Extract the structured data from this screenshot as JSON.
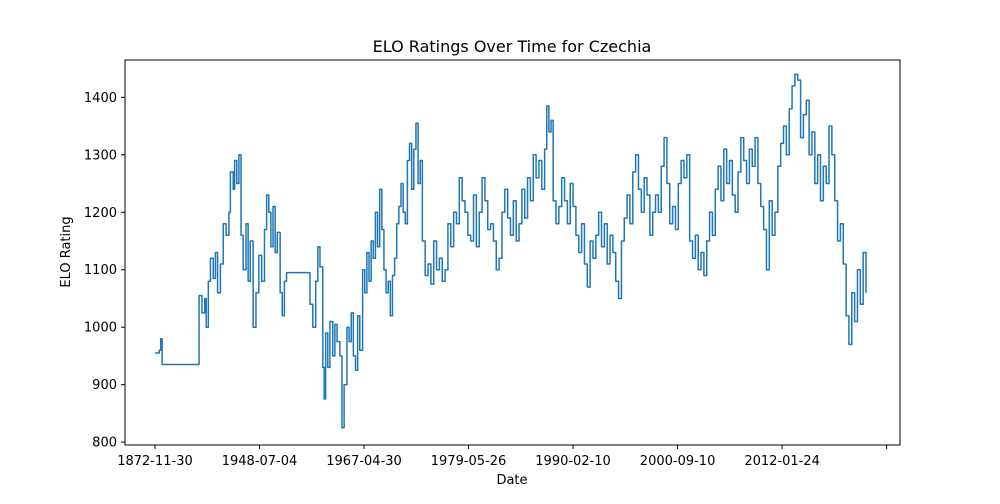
{
  "chart_data": {
    "type": "line",
    "title": "ELO Ratings Over Time for Czechia",
    "xlabel": "Date",
    "ylabel": "ELO Rating",
    "x_tick_labels": [
      "1872-11-30",
      "1948-07-04",
      "1967-04-30",
      "1979-05-26",
      "1990-02-10",
      "2000-09-10",
      "2012-01-24",
      ""
    ],
    "y_ticks": [
      800,
      900,
      1000,
      1100,
      1200,
      1300,
      1400
    ],
    "y_tick_labels": [
      "800",
      "900",
      "1000",
      "1100",
      "1200",
      "1300",
      "1400"
    ],
    "ylim": [
      795,
      1465
    ],
    "index_range": [
      0,
      1000
    ],
    "x_tick_positions": [
      0,
      147,
      294,
      441,
      588,
      735,
      882,
      1029
    ],
    "grid": false,
    "series": [
      {
        "name": "",
        "color": "#1f77b4",
        "points": [
          [
            0,
            955
          ],
          [
            6,
            960
          ],
          [
            8,
            980
          ],
          [
            10,
            935
          ],
          [
            16,
            935
          ],
          [
            60,
            935
          ],
          [
            62,
            1055
          ],
          [
            66,
            1025
          ],
          [
            70,
            1050
          ],
          [
            72,
            1000
          ],
          [
            75,
            1080
          ],
          [
            78,
            1120
          ],
          [
            82,
            1085
          ],
          [
            85,
            1130
          ],
          [
            88,
            1060
          ],
          [
            92,
            1110
          ],
          [
            96,
            1180
          ],
          [
            100,
            1160
          ],
          [
            104,
            1200
          ],
          [
            106,
            1270
          ],
          [
            110,
            1240
          ],
          [
            112,
            1290
          ],
          [
            115,
            1250
          ],
          [
            118,
            1300
          ],
          [
            121,
            1160
          ],
          [
            124,
            1100
          ],
          [
            128,
            1180
          ],
          [
            131,
            1080
          ],
          [
            134,
            1150
          ],
          [
            138,
            1000
          ],
          [
            142,
            1060
          ],
          [
            146,
            1125
          ],
          [
            150,
            1080
          ],
          [
            154,
            1170
          ],
          [
            157,
            1230
          ],
          [
            160,
            1200
          ],
          [
            163,
            1140
          ],
          [
            166,
            1210
          ],
          [
            169,
            1130
          ],
          [
            172,
            1165
          ],
          [
            176,
            1060
          ],
          [
            179,
            1020
          ],
          [
            182,
            1080
          ],
          [
            185,
            1095
          ],
          [
            190,
            1095
          ],
          [
            205,
            1095
          ],
          [
            212,
            1095
          ],
          [
            218,
            1040
          ],
          [
            222,
            1000
          ],
          [
            226,
            1080
          ],
          [
            229,
            1140
          ],
          [
            232,
            1105
          ],
          [
            236,
            930
          ],
          [
            238,
            875
          ],
          [
            240,
            990
          ],
          [
            243,
            930
          ],
          [
            246,
            1010
          ],
          [
            250,
            950
          ],
          [
            253,
            1005
          ],
          [
            256,
            975
          ],
          [
            260,
            950
          ],
          [
            263,
            825
          ],
          [
            266,
            900
          ],
          [
            270,
            1000
          ],
          [
            273,
            975
          ],
          [
            276,
            1025
          ],
          [
            279,
            950
          ],
          [
            282,
            925
          ],
          [
            285,
            1020
          ],
          [
            288,
            960
          ],
          [
            292,
            1100
          ],
          [
            295,
            1060
          ],
          [
            298,
            1130
          ],
          [
            301,
            1080
          ],
          [
            304,
            1150
          ],
          [
            307,
            1120
          ],
          [
            310,
            1200
          ],
          [
            313,
            1140
          ],
          [
            316,
            1240
          ],
          [
            319,
            1170
          ],
          [
            322,
            1100
          ],
          [
            325,
            1060
          ],
          [
            328,
            1080
          ],
          [
            331,
            1020
          ],
          [
            334,
            1090
          ],
          [
            337,
            1120
          ],
          [
            340,
            1180
          ],
          [
            343,
            1210
          ],
          [
            346,
            1250
          ],
          [
            349,
            1200
          ],
          [
            352,
            1180
          ],
          [
            355,
            1290
          ],
          [
            358,
            1320
          ],
          [
            361,
            1240
          ],
          [
            364,
            1310
          ],
          [
            367,
            1355
          ],
          [
            370,
            1250
          ],
          [
            373,
            1290
          ],
          [
            376,
            1150
          ],
          [
            380,
            1090
          ],
          [
            384,
            1110
          ],
          [
            388,
            1075
          ],
          [
            392,
            1150
          ],
          [
            396,
            1100
          ],
          [
            400,
            1120
          ],
          [
            404,
            1080
          ],
          [
            408,
            1100
          ],
          [
            412,
            1180
          ],
          [
            416,
            1140
          ],
          [
            420,
            1200
          ],
          [
            424,
            1180
          ],
          [
            428,
            1260
          ],
          [
            432,
            1220
          ],
          [
            436,
            1200
          ],
          [
            440,
            1160
          ],
          [
            444,
            1150
          ],
          [
            448,
            1230
          ],
          [
            452,
            1140
          ],
          [
            456,
            1200
          ],
          [
            460,
            1260
          ],
          [
            464,
            1220
          ],
          [
            468,
            1170
          ],
          [
            472,
            1180
          ],
          [
            476,
            1150
          ],
          [
            480,
            1100
          ],
          [
            484,
            1120
          ],
          [
            488,
            1200
          ],
          [
            492,
            1240
          ],
          [
            496,
            1190
          ],
          [
            500,
            1160
          ],
          [
            504,
            1220
          ],
          [
            508,
            1150
          ],
          [
            512,
            1180
          ],
          [
            516,
            1240
          ],
          [
            520,
            1190
          ],
          [
            524,
            1260
          ],
          [
            528,
            1220
          ],
          [
            532,
            1300
          ],
          [
            536,
            1260
          ],
          [
            540,
            1290
          ],
          [
            544,
            1240
          ],
          [
            548,
            1310
          ],
          [
            551,
            1385
          ],
          [
            554,
            1340
          ],
          [
            557,
            1360
          ],
          [
            560,
            1220
          ],
          [
            564,
            1180
          ],
          [
            568,
            1210
          ],
          [
            572,
            1260
          ],
          [
            576,
            1220
          ],
          [
            580,
            1180
          ],
          [
            584,
            1250
          ],
          [
            588,
            1210
          ],
          [
            592,
            1160
          ],
          [
            596,
            1130
          ],
          [
            600,
            1180
          ],
          [
            604,
            1110
          ],
          [
            608,
            1070
          ],
          [
            612,
            1150
          ],
          [
            616,
            1120
          ],
          [
            620,
            1160
          ],
          [
            624,
            1200
          ],
          [
            628,
            1140
          ],
          [
            632,
            1180
          ],
          [
            636,
            1110
          ],
          [
            640,
            1160
          ],
          [
            644,
            1130
          ],
          [
            648,
            1080
          ],
          [
            652,
            1050
          ],
          [
            656,
            1150
          ],
          [
            660,
            1190
          ],
          [
            664,
            1230
          ],
          [
            668,
            1180
          ],
          [
            672,
            1270
          ],
          [
            676,
            1300
          ],
          [
            680,
            1240
          ],
          [
            684,
            1200
          ],
          [
            688,
            1260
          ],
          [
            692,
            1230
          ],
          [
            696,
            1160
          ],
          [
            700,
            1200
          ],
          [
            704,
            1230
          ],
          [
            708,
            1200
          ],
          [
            712,
            1280
          ],
          [
            716,
            1330
          ],
          [
            720,
            1250
          ],
          [
            724,
            1180
          ],
          [
            728,
            1210
          ],
          [
            732,
            1170
          ],
          [
            736,
            1250
          ],
          [
            740,
            1290
          ],
          [
            744,
            1260
          ],
          [
            748,
            1300
          ],
          [
            752,
            1150
          ],
          [
            756,
            1120
          ],
          [
            760,
            1160
          ],
          [
            764,
            1100
          ],
          [
            768,
            1130
          ],
          [
            772,
            1090
          ],
          [
            776,
            1150
          ],
          [
            780,
            1200
          ],
          [
            784,
            1160
          ],
          [
            788,
            1240
          ],
          [
            792,
            1280
          ],
          [
            796,
            1220
          ],
          [
            800,
            1310
          ],
          [
            804,
            1250
          ],
          [
            808,
            1290
          ],
          [
            812,
            1230
          ],
          [
            816,
            1200
          ],
          [
            820,
            1270
          ],
          [
            824,
            1330
          ],
          [
            828,
            1290
          ],
          [
            832,
            1250
          ],
          [
            836,
            1310
          ],
          [
            840,
            1280
          ],
          [
            844,
            1330
          ],
          [
            848,
            1250
          ],
          [
            852,
            1210
          ],
          [
            856,
            1170
          ],
          [
            860,
            1100
          ],
          [
            864,
            1220
          ],
          [
            868,
            1160
          ],
          [
            872,
            1200
          ],
          [
            876,
            1280
          ],
          [
            880,
            1320
          ],
          [
            884,
            1350
          ],
          [
            888,
            1300
          ],
          [
            892,
            1380
          ],
          [
            896,
            1420
          ],
          [
            900,
            1440
          ],
          [
            904,
            1430
          ],
          [
            908,
            1330
          ],
          [
            912,
            1370
          ],
          [
            916,
            1395
          ],
          [
            920,
            1300
          ],
          [
            924,
            1340
          ],
          [
            928,
            1250
          ],
          [
            932,
            1300
          ],
          [
            936,
            1220
          ],
          [
            940,
            1280
          ],
          [
            944,
            1250
          ],
          [
            948,
            1350
          ],
          [
            952,
            1300
          ],
          [
            956,
            1220
          ],
          [
            960,
            1150
          ],
          [
            964,
            1180
          ],
          [
            968,
            1110
          ],
          [
            972,
            1020
          ],
          [
            976,
            970
          ],
          [
            980,
            1060
          ],
          [
            984,
            1010
          ],
          [
            988,
            1100
          ],
          [
            992,
            1040
          ],
          [
            996,
            1130
          ],
          [
            1000,
            1060
          ]
        ]
      }
    ]
  }
}
